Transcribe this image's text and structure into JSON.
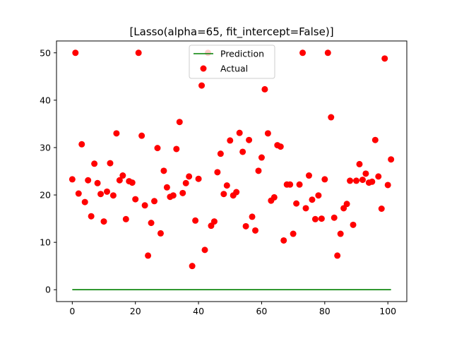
{
  "chart_data": {
    "type": "scatter",
    "title": "[Lasso(alpha=65, fit_intercept=False)]",
    "xlabel": "",
    "ylabel": "",
    "xlim": [
      -5,
      106
    ],
    "ylim": [
      -2.5,
      52.5
    ],
    "xticks": [
      0,
      20,
      40,
      60,
      80,
      100
    ],
    "yticks": [
      0,
      10,
      20,
      30,
      40,
      50
    ],
    "grid": false,
    "legend_position": "top-center",
    "series": [
      {
        "name": "Prediction",
        "kind": "line",
        "color": "#008000",
        "x": [
          0,
          101
        ],
        "y": [
          0,
          0
        ]
      },
      {
        "name": "Actual",
        "kind": "scatter",
        "color": "#ff0000",
        "x": [
          0,
          1,
          2,
          3,
          4,
          5,
          6,
          7,
          8,
          9,
          10,
          11,
          12,
          13,
          14,
          15,
          16,
          17,
          18,
          19,
          20,
          21,
          22,
          23,
          24,
          25,
          26,
          27,
          28,
          29,
          30,
          31,
          32,
          33,
          34,
          35,
          36,
          37,
          38,
          39,
          40,
          41,
          42,
          43,
          44,
          45,
          46,
          47,
          48,
          49,
          50,
          51,
          52,
          53,
          54,
          55,
          56,
          57,
          58,
          59,
          60,
          61,
          62,
          63,
          64,
          65,
          66,
          67,
          68,
          69,
          70,
          71,
          72,
          73,
          74,
          75,
          76,
          77,
          78,
          79,
          80,
          81,
          82,
          83,
          84,
          85,
          86,
          87,
          88,
          89,
          90,
          91,
          92,
          93,
          94,
          95,
          96,
          97,
          98,
          99,
          100,
          101
        ],
        "y": [
          23.3,
          50,
          20.3,
          30.7,
          18.5,
          23.1,
          15.5,
          26.6,
          22.5,
          20.2,
          14.4,
          20.7,
          26.7,
          19.9,
          33.0,
          23.1,
          24.1,
          14.9,
          22.9,
          22.6,
          19.1,
          50,
          32.5,
          17.8,
          7.2,
          14.1,
          18.7,
          29.9,
          11.9,
          25.1,
          21.6,
          19.6,
          19.9,
          29.7,
          35.4,
          20.4,
          22.5,
          23.9,
          5.0,
          14.6,
          23.4,
          43.1,
          8.4,
          50,
          13.5,
          14.4,
          24.8,
          28.7,
          20.2,
          22.0,
          31.5,
          19.9,
          20.6,
          33.1,
          29.1,
          13.4,
          31.6,
          15.4,
          12.5,
          25.1,
          27.9,
          42.3,
          33.0,
          18.8,
          19.5,
          30.5,
          30.2,
          10.4,
          22.2,
          22.2,
          11.8,
          18.2,
          22.2,
          50,
          17.2,
          24.1,
          19.0,
          14.9,
          19.9,
          15.0,
          23.3,
          50,
          36.4,
          15.2,
          7.2,
          11.8,
          17.2,
          18.1,
          23.0,
          13.7,
          23.0,
          26.5,
          23.2,
          24.5,
          22.6,
          22.8,
          31.6,
          23.9,
          17.1,
          48.8,
          22.1,
          27.5
        ]
      }
    ]
  }
}
